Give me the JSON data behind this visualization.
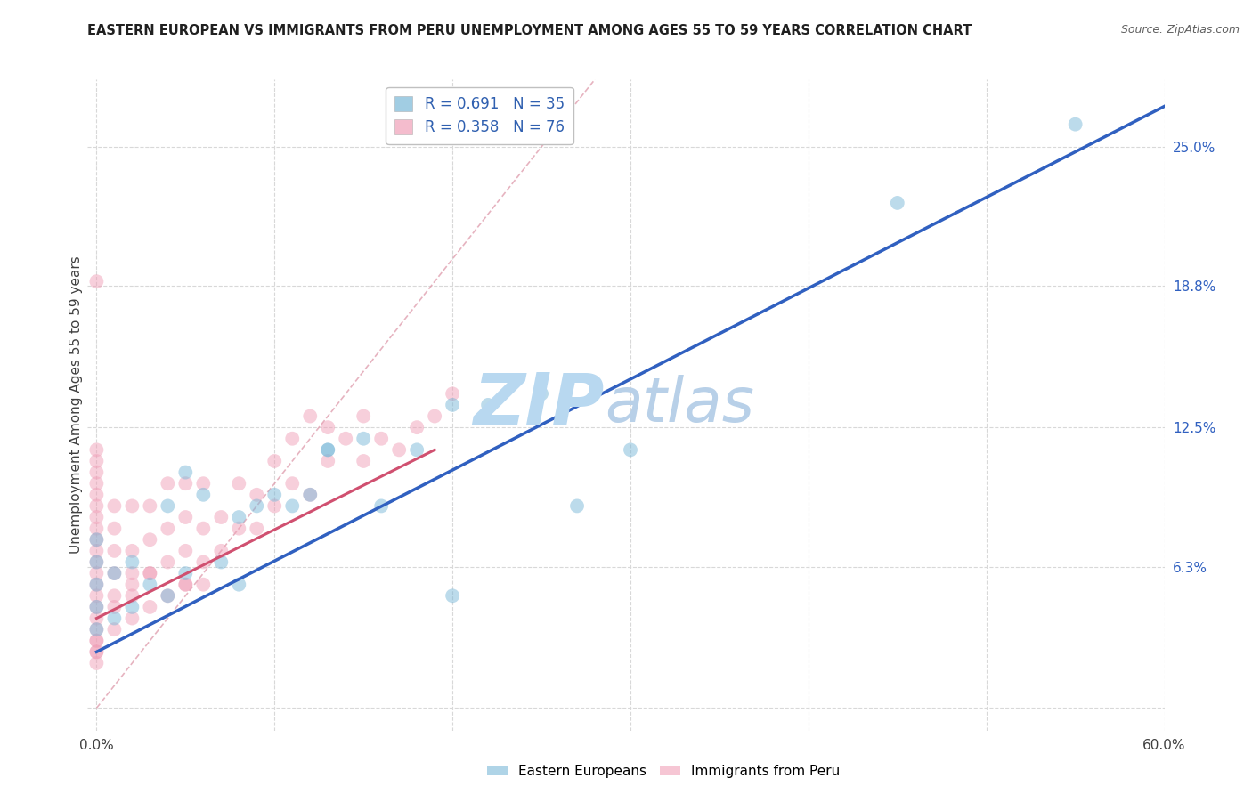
{
  "title": "EASTERN EUROPEAN VS IMMIGRANTS FROM PERU UNEMPLOYMENT AMONG AGES 55 TO 59 YEARS CORRELATION CHART",
  "source": "Source: ZipAtlas.com",
  "ylabel": "Unemployment Among Ages 55 to 59 years",
  "xlim": [
    -0.005,
    0.6
  ],
  "ylim": [
    -0.01,
    0.28
  ],
  "xtick_positions": [
    0.0,
    0.1,
    0.2,
    0.3,
    0.4,
    0.5,
    0.6
  ],
  "xticklabels": [
    "0.0%",
    "",
    "",
    "",
    "",
    "",
    "60.0%"
  ],
  "ytick_positions": [
    0.0,
    0.063,
    0.125,
    0.188,
    0.25
  ],
  "ytick_labels": [
    "",
    "6.3%",
    "12.5%",
    "18.8%",
    "25.0%"
  ],
  "legend_entries": [
    {
      "label": "R = 0.691   N = 35",
      "color": "#a8c8e8"
    },
    {
      "label": "R = 0.358   N = 76",
      "color": "#f0a8c0"
    }
  ],
  "watermark_zip": "ZIP",
  "watermark_atlas": "atlas",
  "watermark_color_zip": "#b8d8f0",
  "watermark_color_atlas": "#b8d0e8",
  "blue_color": "#7ab8d8",
  "pink_color": "#f0a0b8",
  "blue_line_color": "#3060c0",
  "pink_line_color": "#d05070",
  "ref_line_color": "#e0a0b0",
  "grid_color": "#d8d8d8",
  "blue_scatter_x": [
    0.0,
    0.0,
    0.0,
    0.0,
    0.0,
    0.01,
    0.01,
    0.02,
    0.02,
    0.03,
    0.04,
    0.04,
    0.05,
    0.06,
    0.07,
    0.08,
    0.09,
    0.1,
    0.11,
    0.12,
    0.13,
    0.15,
    0.16,
    0.18,
    0.2,
    0.22,
    0.25,
    0.27,
    0.3,
    0.13,
    0.08,
    0.05,
    0.2,
    0.45,
    0.55
  ],
  "blue_scatter_y": [
    0.035,
    0.045,
    0.055,
    0.065,
    0.075,
    0.04,
    0.06,
    0.045,
    0.065,
    0.055,
    0.05,
    0.09,
    0.06,
    0.095,
    0.065,
    0.085,
    0.09,
    0.095,
    0.09,
    0.095,
    0.115,
    0.12,
    0.09,
    0.115,
    0.05,
    0.135,
    0.14,
    0.09,
    0.115,
    0.115,
    0.055,
    0.105,
    0.135,
    0.225,
    0.26
  ],
  "pink_scatter_x": [
    0.0,
    0.0,
    0.0,
    0.0,
    0.0,
    0.0,
    0.0,
    0.0,
    0.0,
    0.0,
    0.0,
    0.0,
    0.0,
    0.0,
    0.0,
    0.0,
    0.0,
    0.0,
    0.0,
    0.0,
    0.01,
    0.01,
    0.01,
    0.01,
    0.01,
    0.01,
    0.02,
    0.02,
    0.02,
    0.02,
    0.02,
    0.03,
    0.03,
    0.03,
    0.03,
    0.04,
    0.04,
    0.04,
    0.04,
    0.05,
    0.05,
    0.05,
    0.05,
    0.06,
    0.06,
    0.06,
    0.07,
    0.07,
    0.08,
    0.08,
    0.09,
    0.09,
    0.1,
    0.1,
    0.11,
    0.11,
    0.12,
    0.12,
    0.13,
    0.13,
    0.14,
    0.15,
    0.15,
    0.16,
    0.17,
    0.18,
    0.19,
    0.2,
    0.05,
    0.03,
    0.02,
    0.01,
    0.0,
    0.0,
    0.0,
    0.06
  ],
  "pink_scatter_y": [
    0.025,
    0.03,
    0.035,
    0.04,
    0.045,
    0.05,
    0.055,
    0.06,
    0.065,
    0.07,
    0.075,
    0.08,
    0.085,
    0.09,
    0.095,
    0.1,
    0.105,
    0.11,
    0.115,
    0.19,
    0.035,
    0.05,
    0.06,
    0.07,
    0.08,
    0.09,
    0.04,
    0.05,
    0.06,
    0.07,
    0.09,
    0.045,
    0.06,
    0.075,
    0.09,
    0.05,
    0.065,
    0.08,
    0.1,
    0.055,
    0.07,
    0.085,
    0.1,
    0.065,
    0.08,
    0.1,
    0.07,
    0.085,
    0.08,
    0.1,
    0.08,
    0.095,
    0.09,
    0.11,
    0.1,
    0.12,
    0.095,
    0.13,
    0.11,
    0.125,
    0.12,
    0.11,
    0.13,
    0.12,
    0.115,
    0.125,
    0.13,
    0.14,
    0.055,
    0.06,
    0.055,
    0.045,
    0.02,
    0.025,
    0.03,
    0.055
  ],
  "blue_line_x": [
    0.0,
    0.6
  ],
  "blue_line_y": [
    0.025,
    0.268
  ],
  "pink_line_x": [
    0.0,
    0.19
  ],
  "pink_line_y": [
    0.04,
    0.115
  ],
  "ref_line_x": [
    0.0,
    0.28
  ],
  "ref_line_y": [
    0.0,
    0.28
  ]
}
